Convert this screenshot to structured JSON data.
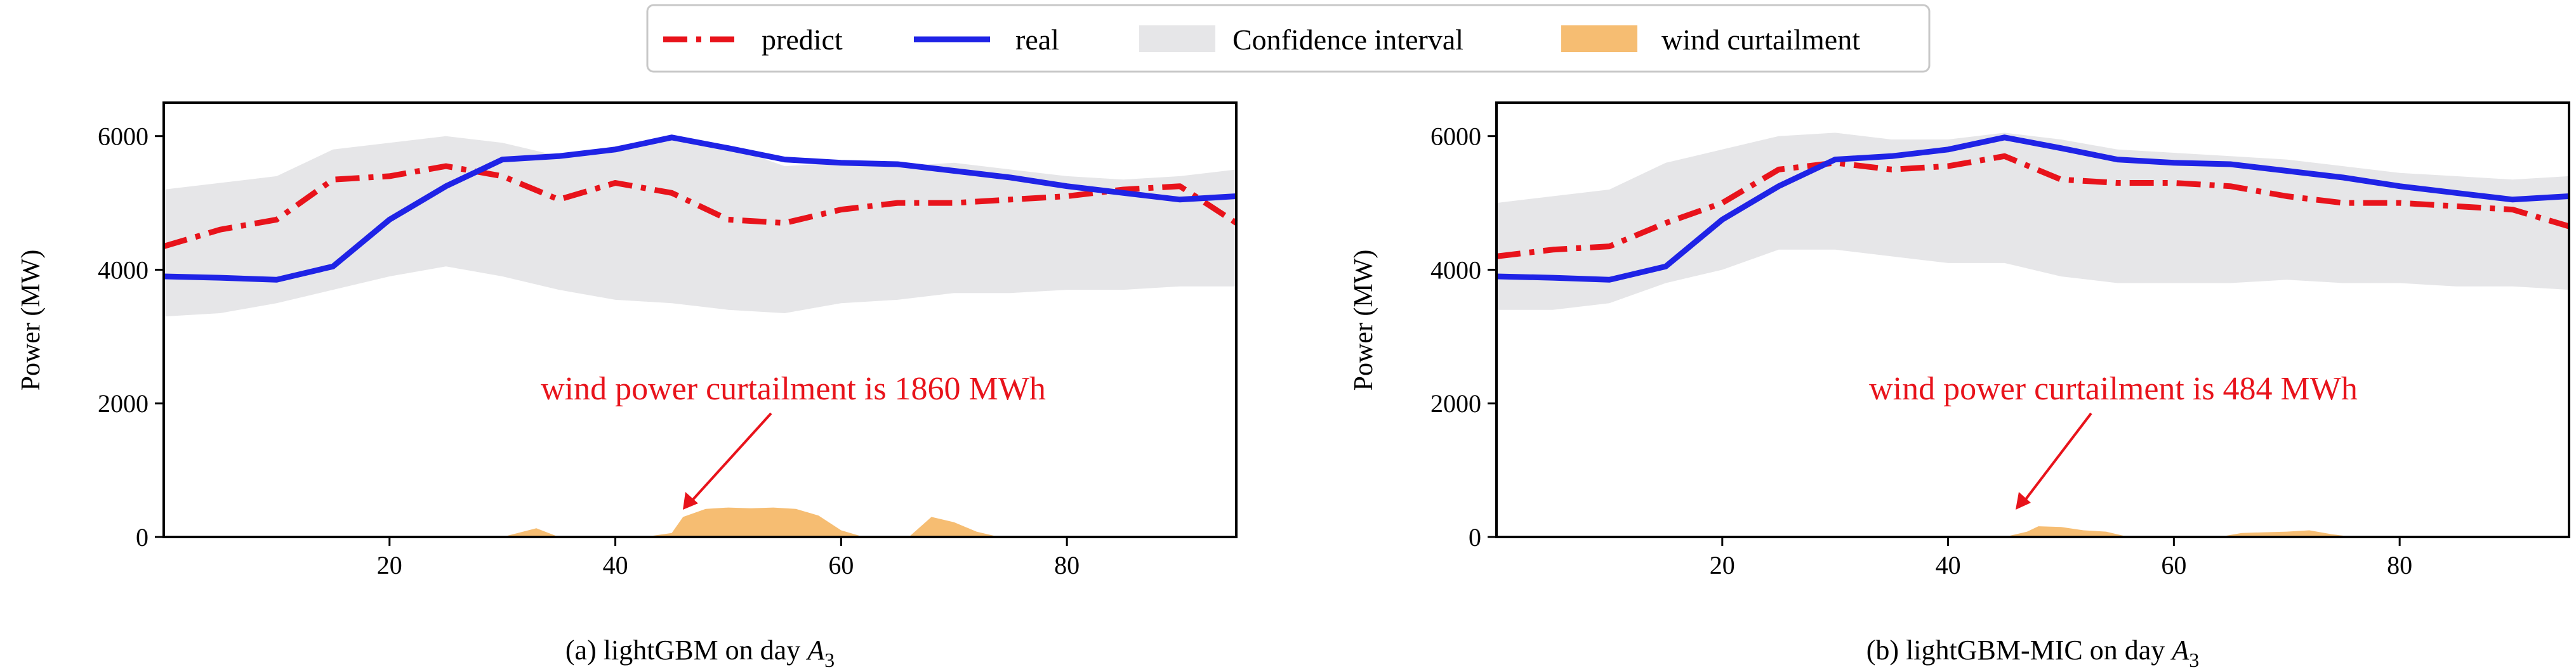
{
  "legend": {
    "items": [
      {
        "label": "predict",
        "color": "#e8131b",
        "style": "dashdot"
      },
      {
        "label": "real",
        "color": "#1f23e6",
        "style": "solid"
      },
      {
        "label": "Confidence interval",
        "color": "#e6e6e8",
        "style": "band"
      },
      {
        "label": "wind curtailment",
        "color": "#f6bd72",
        "style": "area"
      }
    ],
    "placement": "top-center"
  },
  "chart_data": [
    {
      "type": "line",
      "caption": {
        "prefix": "(a) lightGBM on day ",
        "italic": "A",
        "sub": "3"
      },
      "ylabel": "Power (MW)",
      "xlabel": "",
      "xlim": [
        0,
        95
      ],
      "ylim": [
        0,
        6500
      ],
      "xticks": [
        20,
        40,
        60,
        80
      ],
      "yticks": [
        0,
        2000,
        4000,
        6000
      ],
      "grid": false,
      "annotation": {
        "text": "wind power curtailment is 1860 MWh",
        "text_at": [
          30,
          2000
        ],
        "arrow_to": [
          46,
          380
        ]
      },
      "x": [
        0,
        5,
        10,
        15,
        20,
        25,
        30,
        35,
        40,
        45,
        50,
        55,
        60,
        65,
        70,
        75,
        80,
        85,
        90,
        95
      ],
      "series": [
        {
          "name": "predict",
          "values": [
            4350,
            4600,
            4750,
            5350,
            5400,
            5550,
            5400,
            5050,
            5300,
            5150,
            4750,
            4700,
            4900,
            5000,
            5000,
            5050,
            5100,
            5200,
            5250,
            4700
          ]
        },
        {
          "name": "real",
          "values": [
            3900,
            3880,
            3850,
            4050,
            4750,
            5250,
            5650,
            5700,
            5800,
            5980,
            5820,
            5650,
            5600,
            5580,
            5480,
            5380,
            5250,
            5150,
            5050,
            5100
          ]
        },
        {
          "name": "Confidence interval",
          "lower": [
            3300,
            3350,
            3500,
            3700,
            3900,
            4050,
            3900,
            3700,
            3550,
            3500,
            3400,
            3350,
            3500,
            3550,
            3650,
            3650,
            3700,
            3700,
            3750,
            3750
          ],
          "upper": [
            5200,
            5300,
            5400,
            5800,
            5900,
            6000,
            5900,
            5700,
            5850,
            6000,
            5850,
            5550,
            5600,
            5550,
            5600,
            5500,
            5400,
            5350,
            5400,
            5500
          ]
        },
        {
          "name": "wind curtailment",
          "x": [
            30,
            33,
            35,
            40,
            43,
            45,
            46,
            48,
            50,
            52,
            54,
            56,
            58,
            60,
            62,
            66,
            68,
            70,
            72,
            74
          ],
          "values": [
            0,
            130,
            0,
            0,
            10,
            60,
            300,
            420,
            440,
            430,
            440,
            420,
            320,
            100,
            0,
            0,
            300,
            220,
            80,
            0
          ]
        }
      ]
    },
    {
      "type": "line",
      "caption": {
        "prefix": "(b) lightGBM-MIC on day ",
        "italic": "A",
        "sub": "3"
      },
      "ylabel": "Power (MW)",
      "xlabel": "",
      "xlim": [
        0,
        95
      ],
      "ylim": [
        0,
        6500
      ],
      "xticks": [
        20,
        40,
        60,
        80
      ],
      "yticks": [
        0,
        2000,
        4000,
        6000
      ],
      "grid": false,
      "annotation": {
        "text": "wind power curtailment is 484 MWh",
        "text_at": [
          30,
          2000
        ],
        "arrow_to": [
          46,
          380
        ]
      },
      "x": [
        0,
        5,
        10,
        15,
        20,
        25,
        30,
        35,
        40,
        45,
        50,
        55,
        60,
        65,
        70,
        75,
        80,
        85,
        90,
        95
      ],
      "series": [
        {
          "name": "predict",
          "values": [
            4200,
            4300,
            4350,
            4700,
            5000,
            5500,
            5600,
            5500,
            5550,
            5700,
            5350,
            5300,
            5300,
            5250,
            5100,
            5000,
            5000,
            4950,
            4900,
            4650
          ]
        },
        {
          "name": "real",
          "values": [
            3900,
            3880,
            3850,
            4050,
            4750,
            5250,
            5650,
            5700,
            5800,
            5980,
            5820,
            5650,
            5600,
            5580,
            5480,
            5380,
            5250,
            5150,
            5050,
            5100
          ]
        },
        {
          "name": "Confidence interval",
          "lower": [
            3400,
            3400,
            3500,
            3800,
            4000,
            4300,
            4300,
            4200,
            4100,
            4100,
            3900,
            3800,
            3800,
            3800,
            3850,
            3800,
            3800,
            3750,
            3750,
            3700
          ],
          "upper": [
            5000,
            5100,
            5200,
            5600,
            5800,
            6000,
            6050,
            5950,
            5950,
            6050,
            5950,
            5800,
            5750,
            5700,
            5650,
            5550,
            5450,
            5400,
            5350,
            5400
          ]
        },
        {
          "name": "wind curtailment",
          "x": [
            45,
            47,
            48,
            50,
            52,
            54,
            56,
            64,
            66,
            68,
            70,
            72,
            74,
            76
          ],
          "values": [
            0,
            80,
            160,
            150,
            100,
            80,
            0,
            0,
            60,
            70,
            80,
            100,
            40,
            0
          ]
        }
      ]
    }
  ]
}
